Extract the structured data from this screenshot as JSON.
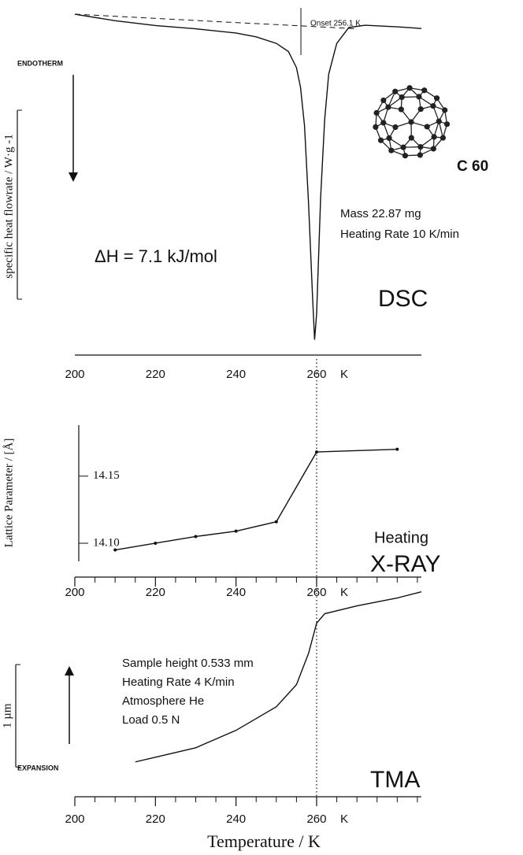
{
  "chart_data": [
    {
      "type": "line",
      "xlim": [
        200,
        286
      ],
      "xticks": [
        200,
        220,
        240,
        260
      ],
      "xunit": "K",
      "ylim": [
        -105,
        1
      ],
      "ylabel": "specific heat flowrate / W·g -1",
      "x": [
        200,
        210,
        220,
        230,
        240,
        245,
        250,
        253,
        255,
        256,
        257,
        258,
        259,
        259.5,
        260,
        261,
        262,
        263,
        265,
        268,
        272,
        280,
        286
      ],
      "series": [
        {
          "color": "#111111",
          "values": [
            0.5,
            -1.5,
            -3,
            -4,
            -5.3,
            -6.5,
            -8.5,
            -11,
            -16,
            -22,
            -34,
            -58,
            -87,
            -100,
            -92,
            -56,
            -32,
            -18,
            -8.5,
            -3.6,
            -2.9,
            -3.4,
            -3.9
          ]
        }
      ],
      "baseline": {
        "x": [
          200,
          270
        ],
        "values": [
          0.5,
          -4
        ]
      },
      "onset": {
        "value": 256.1,
        "label": "Onset 256.1 K"
      },
      "annotations": [
        "ENDOTHERM",
        "Mass 22.87 mg",
        "Heating Rate 10 K/min",
        "ΔH = 7.1 kJ/mol",
        "DSC",
        "C 60"
      ]
    },
    {
      "type": "line",
      "xlim": [
        200,
        286
      ],
      "xticks": [
        200,
        220,
        240,
        260
      ],
      "xunit": "K",
      "minor_xticks": [
        205,
        210,
        215,
        225,
        230,
        235,
        245,
        250,
        255,
        265,
        270,
        275,
        280,
        285
      ],
      "ylim": [
        14.0865,
        14.188
      ],
      "yticks": [
        14.15,
        {
          "value": 14.1,
          "label": "14.10"
        }
      ],
      "ylabel": "Lattice Parameter / [Å]",
      "x": [
        210,
        220,
        230,
        240,
        250,
        260,
        280
      ],
      "series": [
        {
          "color": "#111111",
          "values": [
            14.095,
            14.1,
            14.105,
            14.109,
            14.116,
            14.168,
            14.17
          ]
        }
      ],
      "vline": 260,
      "annotations": [
        "Heating",
        "X-RAY"
      ]
    },
    {
      "type": "line",
      "xlim": [
        200,
        286
      ],
      "xticks": [
        200,
        220,
        240,
        260
      ],
      "xunit": "K",
      "minor_xticks": [
        205,
        210,
        215,
        225,
        230,
        235,
        245,
        250,
        255,
        265,
        270,
        275,
        280,
        285
      ],
      "ylim": [
        -0.34,
        1.75
      ],
      "xlabel": "Temperature / K",
      "scale_bar": {
        "values": [
          -0.05,
          0.95
        ],
        "label": "1 µm"
      },
      "x": [
        215,
        220,
        230,
        240,
        250,
        255,
        258,
        260,
        262,
        270,
        280,
        286
      ],
      "series": [
        {
          "color": "#111111",
          "values": [
            0,
            0.046,
            0.138,
            0.308,
            0.538,
            0.754,
            1.06,
            1.354,
            1.446,
            1.523,
            1.6,
            1.66
          ]
        }
      ],
      "vline": 260,
      "annotations": [
        "Sample height 0.533 mm",
        "Heating Rate 4 K/min",
        "Atmosphere He",
        "Load 0.5 N",
        "EXPANSION",
        "TMA"
      ]
    }
  ]
}
